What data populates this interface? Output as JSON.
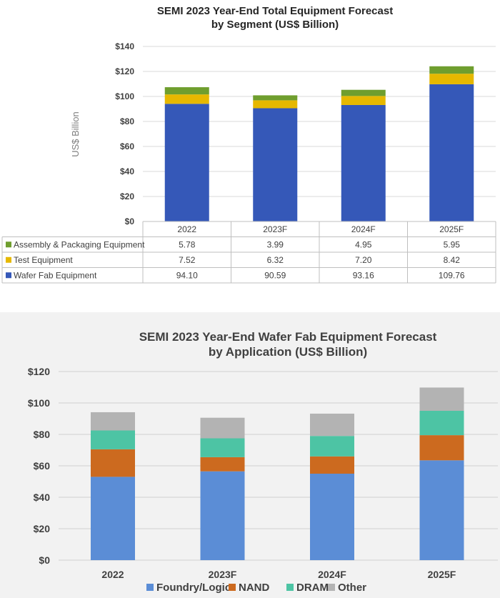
{
  "chart_data": [
    {
      "type": "bar",
      "stacked": true,
      "title": "SEMI 2023 Year-End Total Equipment Forecast",
      "subtitle": "by Segment (US$ Billion)",
      "ylabel": "US$ Billion",
      "ylim": [
        0,
        140
      ],
      "yticks": [
        "$0",
        "$20",
        "$40",
        "$60",
        "$80",
        "$100",
        "$120",
        "$140"
      ],
      "grid": true,
      "legend": "data-table",
      "categories": [
        "2022",
        "2023F",
        "2024F",
        "2025F"
      ],
      "series": [
        {
          "name": "Wafer Fab Equipment",
          "color": "#3558b8",
          "values": [
            94.1,
            90.59,
            93.16,
            109.76
          ],
          "labels": [
            "94.10",
            "90.59",
            "93.16",
            "109.76"
          ]
        },
        {
          "name": "Test Equipment",
          "color": "#e6b800",
          "values": [
            7.52,
            6.32,
            7.2,
            8.42
          ],
          "labels": [
            "7.52",
            "6.32",
            "7.20",
            "8.42"
          ]
        },
        {
          "name": "Assembly & Packaging Equipment",
          "color": "#6f9e2e",
          "values": [
            5.78,
            3.99,
            4.95,
            5.95
          ],
          "labels": [
            "5.78",
            "3.99",
            "4.95",
            "5.95"
          ]
        }
      ]
    },
    {
      "type": "bar",
      "stacked": true,
      "title": "SEMI 2023 Year-End Wafer Fab Equipment Forecast",
      "subtitle": "by Application (US$ Billion)",
      "ylim": [
        0,
        120
      ],
      "yticks": [
        "$0",
        "$20",
        "$40",
        "$60",
        "$80",
        "$100",
        "$120"
      ],
      "grid": true,
      "legend": "bottom",
      "categories": [
        "2022",
        "2023F",
        "2024F",
        "2025F"
      ],
      "series": [
        {
          "name": "Foundry/Logic",
          "color": "#5b8dd6",
          "values": [
            53,
            56.5,
            55,
            63.5
          ]
        },
        {
          "name": "NAND",
          "color": "#cc6a1f",
          "values": [
            17.5,
            9,
            11,
            16
          ]
        },
        {
          "name": "DRAM",
          "color": "#4dc4a4",
          "values": [
            12,
            12,
            13,
            15.5
          ]
        },
        {
          "name": "Other",
          "color": "#b3b3b3",
          "values": [
            11.6,
            13.1,
            14.2,
            14.8
          ]
        }
      ]
    }
  ]
}
